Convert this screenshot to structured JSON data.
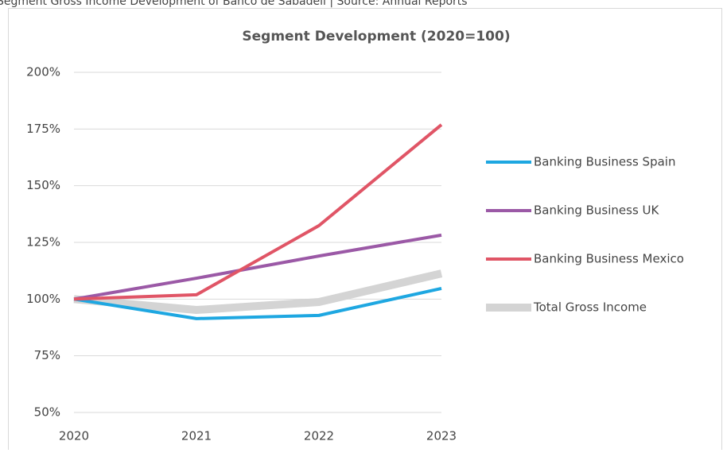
{
  "caption": "Segment Gross Income Development of Banco de Sabadell | Source: Annual Reports",
  "chart_data": {
    "type": "line",
    "title": "Segment Development (2020=100)",
    "categories": [
      "2020",
      "2021",
      "2022",
      "2023"
    ],
    "series": [
      {
        "name": "Banking Business Spain",
        "color": "#1ea7e1",
        "width": 4,
        "values": [
          100,
          91.4,
          92.8,
          104.7
        ]
      },
      {
        "name": "Banking Business UK",
        "color": "#9b59a6",
        "width": 4,
        "values": [
          100,
          109.2,
          119,
          128.2
        ]
      },
      {
        "name": "Banking Business Mexico",
        "color": "#e05566",
        "width": 4,
        "values": [
          100,
          101.9,
          132.4,
          176.9
        ]
      },
      {
        "name": "Total Gross Income",
        "color": "#d4d4d4",
        "width": 10,
        "values": [
          100,
          95.2,
          98.7,
          111.3
        ]
      }
    ],
    "ylim": [
      50,
      200
    ],
    "yticks": [
      {
        "value": 50,
        "label": "50%"
      },
      {
        "value": 75,
        "label": "75%"
      },
      {
        "value": 100,
        "label": "100%"
      },
      {
        "value": 125,
        "label": "125%"
      },
      {
        "value": 150,
        "label": "150%"
      },
      {
        "value": 175,
        "label": "175%"
      },
      {
        "value": 200,
        "label": "200%"
      }
    ],
    "grid": true,
    "legend": "right"
  }
}
